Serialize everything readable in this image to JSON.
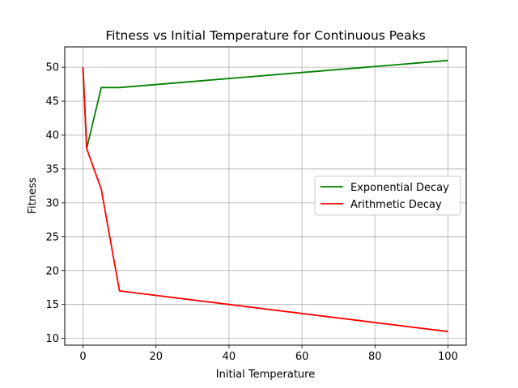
{
  "chart_data": {
    "type": "line",
    "title": "Fitness vs Initial Temperature for Continuous Peaks",
    "xlabel": "Initial Temperature",
    "ylabel": "Fitness",
    "xlim": [
      -5,
      105
    ],
    "ylim": [
      9,
      53
    ],
    "xticks": [
      0,
      20,
      40,
      60,
      80,
      100
    ],
    "yticks": [
      10,
      15,
      20,
      25,
      30,
      35,
      40,
      45,
      50
    ],
    "grid": true,
    "legend_position": "center-right",
    "series": [
      {
        "name": "Exponential Decay",
        "color": "#008000",
        "x": [
          0,
          1,
          5,
          10,
          100
        ],
        "y": [
          50,
          38,
          47,
          47,
          51
        ]
      },
      {
        "name": "Arithmetic Decay",
        "color": "#ff0000",
        "x": [
          0,
          1,
          5,
          10,
          100
        ],
        "y": [
          50,
          38,
          32,
          17,
          11
        ]
      }
    ]
  }
}
